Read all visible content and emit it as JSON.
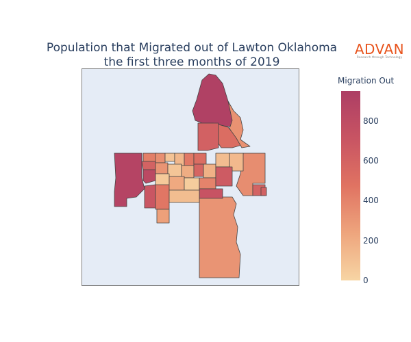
{
  "title": {
    "line1": "Population that Migrated out of Lawton Oklahoma",
    "line2": "the first three months of 2019"
  },
  "logo": {
    "word": "ADVAN",
    "tagline": "Research through Technology"
  },
  "colorbar": {
    "title": "Migration Out",
    "min": 0,
    "max": 950,
    "ticks": [
      {
        "label": "800",
        "value": 800
      },
      {
        "label": "600",
        "value": 600
      },
      {
        "label": "400",
        "value": 400
      },
      {
        "label": "200",
        "value": 200
      },
      {
        "label": "0",
        "value": 0
      }
    ],
    "colorscale": [
      "#f7d5a4",
      "#eea57d",
      "#e07362",
      "#c85463",
      "#ad3e64"
    ]
  },
  "chart_data": {
    "type": "choropleth",
    "colorbar_title": "Migration Out",
    "zrange": [
      0,
      950
    ],
    "background": "#e5ecf6",
    "region_values": [
      920,
      880,
      610,
      520,
      330,
      830,
      700,
      460,
      260,
      320,
      350,
      600,
      610,
      420,
      340,
      90,
      150,
      450,
      520,
      600,
      320,
      80,
      200,
      580,
      180,
      120,
      140,
      60,
      220,
      40,
      400,
      660,
      720,
      120
    ]
  }
}
